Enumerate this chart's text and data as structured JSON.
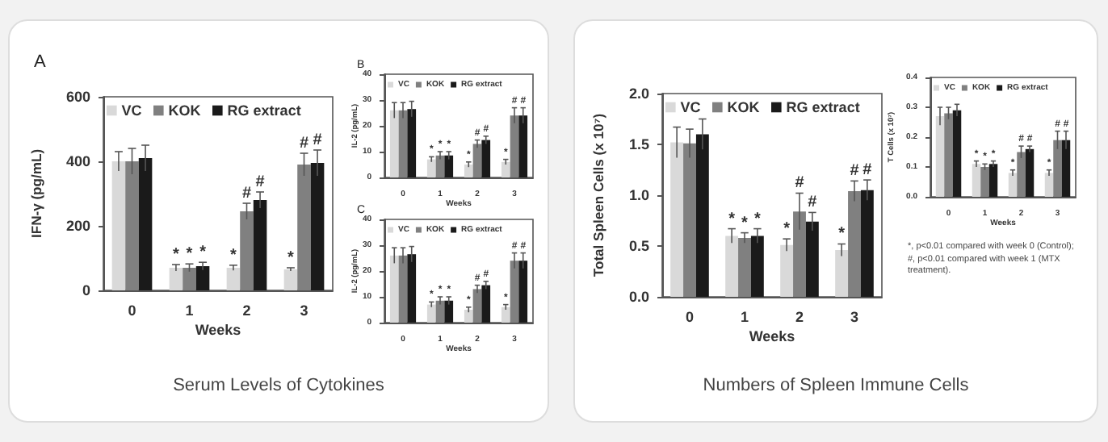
{
  "chart_data": [
    {
      "type": "bar",
      "title": "A",
      "xlabel": "Weeks",
      "ylabel": "IFN-γ (pg/mL)",
      "categories": [
        "0",
        "1",
        "2",
        "3"
      ],
      "ylim": [
        0,
        600
      ],
      "yticks": [
        0,
        200,
        400,
        600
      ],
      "legend": "top left",
      "grid": false,
      "annotations": [
        "Serum Levels of Cytokines"
      ],
      "series": [
        {
          "name": "VC",
          "color": "#d9d9d9",
          "values": [
            400,
            70,
            70,
            65
          ],
          "errors": [
            30,
            10,
            8,
            5
          ],
          "value_labels": [
            null,
            "*",
            "*",
            "*"
          ]
        },
        {
          "name": "KOK",
          "color": "#808080",
          "values": [
            400,
            70,
            245,
            390
          ],
          "errors": [
            40,
            12,
            25,
            35
          ],
          "value_labels": [
            null,
            "*",
            "#",
            "#"
          ]
        },
        {
          "name": "RG extract",
          "color": "#1a1a1a",
          "values": [
            410,
            75,
            280,
            395
          ],
          "errors": [
            40,
            12,
            25,
            40
          ],
          "value_labels": [
            null,
            "*",
            "#",
            "#"
          ]
        }
      ]
    },
    {
      "type": "bar",
      "title": "B",
      "xlabel": "Weeks",
      "ylabel": "IL-2 (pg/mL)",
      "categories": [
        "0",
        "1",
        "2",
        "3"
      ],
      "ylim": [
        0,
        40
      ],
      "yticks": [
        0,
        10,
        20,
        30,
        40
      ],
      "legend": "top left",
      "grid": false,
      "series": [
        {
          "name": "VC",
          "color": "#d9d9d9",
          "values": [
            26,
            7,
            5,
            6
          ],
          "errors": [
            3,
            1,
            1,
            1
          ],
          "value_labels": [
            null,
            "*",
            "*",
            "*"
          ]
        },
        {
          "name": "KOK",
          "color": "#808080",
          "values": [
            26,
            8.5,
            13,
            24
          ],
          "errors": [
            3,
            1.5,
            1.5,
            3
          ],
          "value_labels": [
            null,
            "*",
            "#",
            "#"
          ]
        },
        {
          "name": "RG extract",
          "color": "#1a1a1a",
          "values": [
            26.5,
            8.5,
            14.5,
            24
          ],
          "errors": [
            3,
            1.5,
            1.5,
            3
          ],
          "value_labels": [
            null,
            "*",
            "#",
            "#"
          ]
        }
      ]
    },
    {
      "type": "bar",
      "title": "C",
      "xlabel": "Weeks",
      "ylabel": "IL-2 (pg/mL)",
      "categories": [
        "0",
        "1",
        "2",
        "3"
      ],
      "ylim": [
        0,
        40
      ],
      "yticks": [
        0,
        10,
        20,
        30,
        40
      ],
      "legend": "top left",
      "grid": false,
      "series": [
        {
          "name": "VC",
          "color": "#d9d9d9",
          "values": [
            26,
            7,
            5,
            6
          ],
          "errors": [
            3,
            1,
            1,
            1
          ],
          "value_labels": [
            null,
            "*",
            "*",
            "*"
          ]
        },
        {
          "name": "KOK",
          "color": "#808080",
          "values": [
            26,
            8.5,
            13,
            24
          ],
          "errors": [
            3,
            1.5,
            1.5,
            3
          ],
          "value_labels": [
            null,
            "*",
            "#",
            "#"
          ]
        },
        {
          "name": "RG extract",
          "color": "#1a1a1a",
          "values": [
            26.5,
            8.5,
            14.5,
            24
          ],
          "errors": [
            3,
            1.5,
            1.5,
            3
          ],
          "value_labels": [
            null,
            "*",
            "#",
            "#"
          ]
        }
      ]
    },
    {
      "type": "bar",
      "xlabel": "Weeks",
      "ylabel": "Total Spleen Cells (x 10⁷)",
      "categories": [
        "0",
        "1",
        "2",
        "3"
      ],
      "ylim": [
        0,
        2
      ],
      "yticks": [
        {
          "value": 0,
          "label": "0.0"
        },
        {
          "value": 0.5,
          "label": "0.5"
        },
        {
          "value": 1,
          "label": "1.0"
        },
        {
          "value": 1.5,
          "label": "1.5"
        },
        {
          "value": 2,
          "label": "2.0"
        }
      ],
      "legend": "top left",
      "grid": false,
      "annotations": [
        "Numbers of Spleen Immune Cells"
      ],
      "series": [
        {
          "name": "VC",
          "color": "#d9d9d9",
          "values": [
            1.52,
            0.6,
            0.51,
            0.46
          ],
          "errors": [
            0.15,
            0.07,
            0.06,
            0.06
          ],
          "value_labels": [
            null,
            "*",
            "*",
            "*"
          ]
        },
        {
          "name": "KOK",
          "color": "#808080",
          "values": [
            1.51,
            0.58,
            0.84,
            1.04
          ],
          "errors": [
            0.14,
            0.05,
            0.18,
            0.1
          ],
          "value_labels": [
            null,
            "*",
            "#",
            "#"
          ]
        },
        {
          "name": "RG extract",
          "color": "#1a1a1a",
          "values": [
            1.6,
            0.6,
            0.74,
            1.05
          ],
          "errors": [
            0.15,
            0.07,
            0.09,
            0.1
          ],
          "value_labels": [
            null,
            "*",
            "#",
            "#"
          ]
        }
      ]
    },
    {
      "type": "bar",
      "xlabel": "Weeks",
      "ylabel": "T Cells (x 10⁷)",
      "categories": [
        "0",
        "1",
        "2",
        "3"
      ],
      "ylim": [
        0,
        0.4
      ],
      "yticks": [
        {
          "value": 0,
          "label": "0.0"
        },
        0.1,
        0.2,
        0.3,
        0.4
      ],
      "legend": "top left",
      "grid": false,
      "annotations": [
        "*, p<0.01 compared with week 0 (Control);",
        "#, p<0.01 compared with week 1 (MTX treatment)."
      ],
      "series": [
        {
          "name": "VC",
          "color": "#d9d9d9",
          "values": [
            0.27,
            0.11,
            0.08,
            0.08
          ],
          "errors": [
            0.03,
            0.01,
            0.01,
            0.01
          ],
          "value_labels": [
            null,
            "*",
            "*",
            "*"
          ]
        },
        {
          "name": "KOK",
          "color": "#808080",
          "values": [
            0.28,
            0.1,
            0.15,
            0.19
          ],
          "errors": [
            0.02,
            0.01,
            0.02,
            0.03
          ],
          "value_labels": [
            null,
            "*",
            "#",
            "#"
          ]
        },
        {
          "name": "RG extract",
          "color": "#1a1a1a",
          "values": [
            0.29,
            0.11,
            0.16,
            0.19
          ],
          "errors": [
            0.02,
            0.01,
            0.01,
            0.03
          ],
          "value_labels": [
            null,
            "*",
            "#",
            "#"
          ]
        }
      ]
    }
  ]
}
